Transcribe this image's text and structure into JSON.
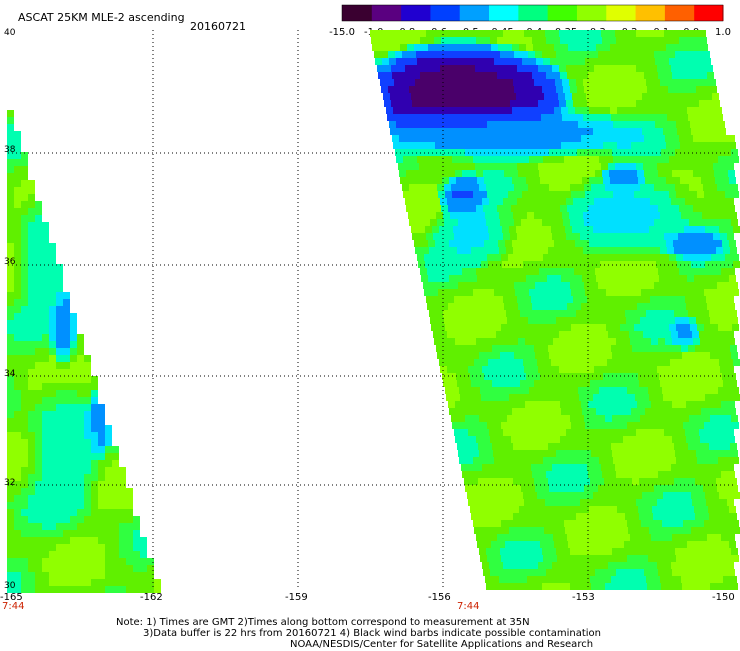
{
  "header": {
    "title": "ASCAT 25KM MLE-2 ascending",
    "date": "20160721"
  },
  "colorbar": {
    "labels": [
      "-15.0",
      "-1.0",
      "-0.8",
      "-0.6",
      "-0.5",
      "-0.45",
      "-0.4",
      "-0.35",
      "-0.3",
      "-0.2",
      "-0.1",
      "0.0",
      "1.0"
    ],
    "colors": [
      "#3a0030",
      "#5a0080",
      "#2000d0",
      "#0040ff",
      "#00a0ff",
      "#00ffff",
      "#00ff80",
      "#40ff00",
      "#90ff00",
      "#e0ff00",
      "#ffc000",
      "#ff6000",
      "#ff0000"
    ]
  },
  "map": {
    "lat_labels": [
      "40",
      "38",
      "36",
      "34",
      "32",
      "30"
    ],
    "lon_labels": [
      "-165",
      "-162",
      "-159",
      "-156",
      "-153",
      "-150"
    ],
    "time_labels": [
      "7:44",
      "7:44"
    ]
  },
  "notes": {
    "line1": "Note: 1) Times are GMT 2)Times along bottom correspond to measurement at 35N",
    "line2": "3)Data buffer is 22 hrs from 20160721 4) Black wind barbs indicate possible contamination",
    "line3": "NOAA/NESDIS/Center for Satellite Applications and Research"
  }
}
